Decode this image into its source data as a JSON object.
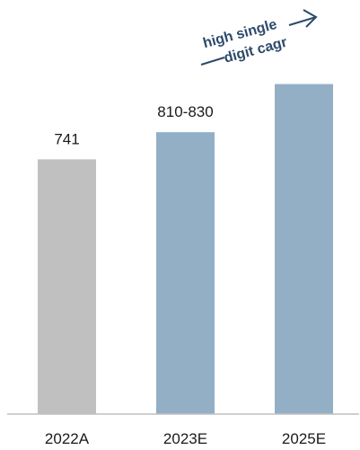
{
  "chart_data": {
    "type": "bar",
    "categories": [
      "2022A",
      "2023E",
      "2025E"
    ],
    "values": [
      741,
      820,
      960
    ],
    "value_labels": [
      "741",
      "810-830",
      ""
    ],
    "colors": [
      "#c0c0c0",
      "#93afc6",
      "#93afc6"
    ],
    "ylim": [
      0,
      1100
    ],
    "grid": false,
    "title": "",
    "xlabel": "",
    "ylabel": "",
    "annotation": {
      "line1": "high single",
      "line2": "digit cagr",
      "color": "#2d4a6b"
    }
  }
}
